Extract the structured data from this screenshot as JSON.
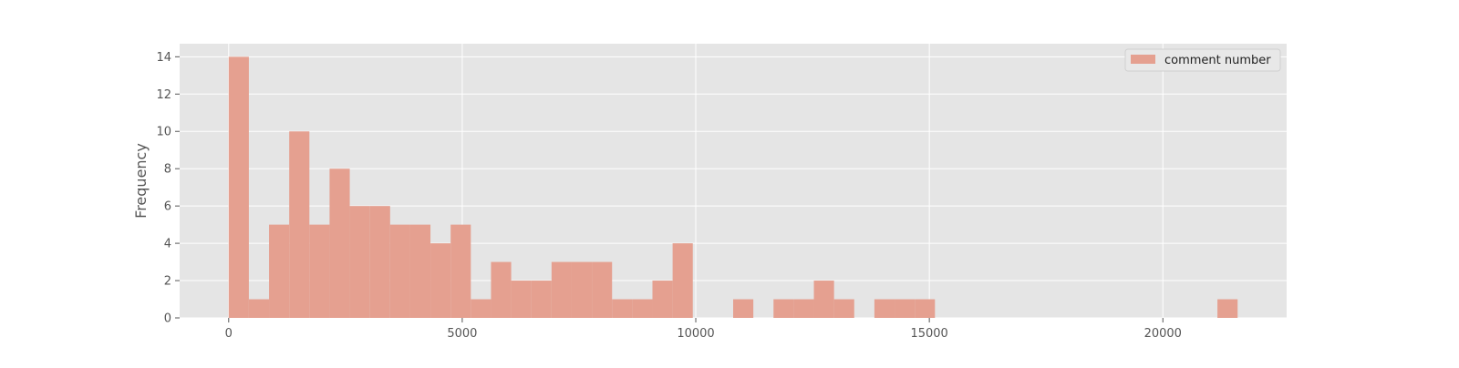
{
  "chart_data": {
    "type": "bar",
    "title": "",
    "xlabel": "",
    "ylabel": "Frequency",
    "bin_start": 0,
    "bin_width": 432,
    "bin_counts": [
      14,
      1,
      5,
      10,
      5,
      8,
      6,
      6,
      5,
      5,
      4,
      5,
      1,
      3,
      2,
      2,
      3,
      3,
      3,
      1,
      1,
      2,
      4,
      0,
      0,
      1,
      0,
      1,
      1,
      2,
      1,
      0,
      1,
      1,
      1,
      0,
      0,
      0,
      0,
      0,
      0,
      0,
      0,
      0,
      0,
      0,
      0,
      0,
      0,
      1
    ],
    "xlim": [
      -1050,
      22650
    ],
    "ylim": [
      0,
      14.7
    ],
    "xticks": [
      0,
      5000,
      10000,
      15000,
      20000
    ],
    "yticks": [
      0,
      2,
      4,
      6,
      8,
      10,
      12,
      14
    ],
    "series": [
      {
        "name": "comment number",
        "color": "#E5A090"
      }
    ],
    "legend_position": "upper right",
    "grid": true,
    "style": "ggplot",
    "background_color": "#E5E5E5",
    "grid_color": "#FFFFFF"
  }
}
